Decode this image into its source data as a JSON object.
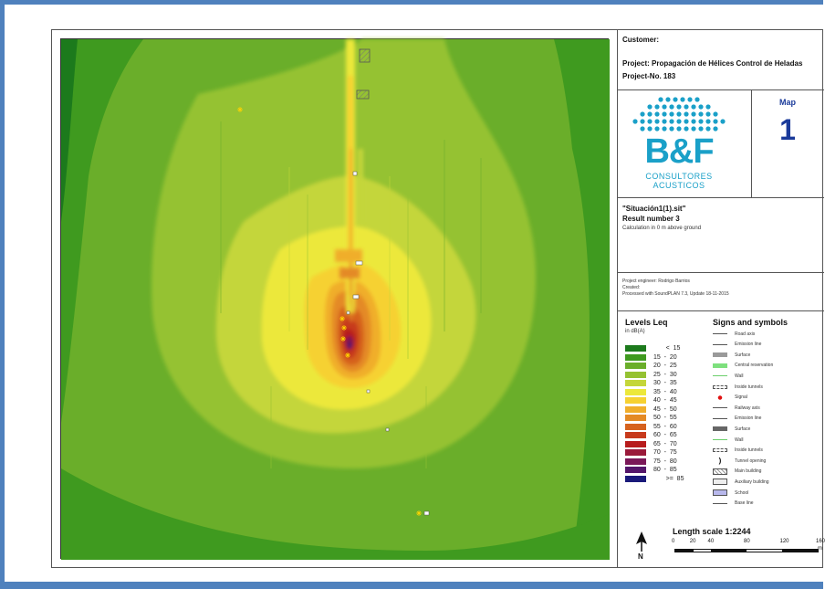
{
  "customer_label": "Customer:",
  "project_line": "Project: Propagación de Hélices Control de Heladas",
  "project_no": "Project-No. 183",
  "map_label": "Map",
  "map_number": "1",
  "logo": {
    "big_text": "B&F",
    "sub_line1": "CONSULTORES",
    "sub_line2": "ACUSTICOS",
    "color": "#1aa0c8"
  },
  "file_name": "\"Situación1(1).sit\"",
  "result_number": "Result number 3",
  "calculation_height": "Calculation in  0 m above ground",
  "engineer": "Project engineer: Rodrigo Barrios",
  "created": "Created:",
  "processed": "Processed with SoundPLAN 7.3, Update 18-11-2015",
  "levels_title": "Levels Leq",
  "levels_unit": "in dB(A)",
  "levels": [
    {
      "label": "       <  15",
      "color": "#1c7a1c"
    },
    {
      "label": "15  -  20",
      "color": "#3f9a1f"
    },
    {
      "label": "20  -  25",
      "color": "#6aae2a"
    },
    {
      "label": "25  -  30",
      "color": "#95c232"
    },
    {
      "label": "30  -  35",
      "color": "#c4d63a"
    },
    {
      "label": "35  -  40",
      "color": "#ece83a"
    },
    {
      "label": "40  -  45",
      "color": "#f6d131"
    },
    {
      "label": "45  -  50",
      "color": "#f0ae2b"
    },
    {
      "label": "50  -  55",
      "color": "#e48a25"
    },
    {
      "label": "55  -  60",
      "color": "#d6621e"
    },
    {
      "label": "60  -  65",
      "color": "#c73a1c"
    },
    {
      "label": "65  -  70",
      "color": "#b71c1c"
    },
    {
      "label": "70  -  75",
      "color": "#9a1a3a"
    },
    {
      "label": "75  -  80",
      "color": "#7a1858"
    },
    {
      "label": "80  -  85",
      "color": "#54166a"
    },
    {
      "label": "       >=  85",
      "color": "#1a1a7a"
    }
  ],
  "symbols_title": "Signs and symbols",
  "symbols": [
    {
      "label": "Road axis",
      "icon": "line-thin"
    },
    {
      "label": "Emission line",
      "icon": "line-thin"
    },
    {
      "label": "Surface",
      "icon": "box-gray"
    },
    {
      "label": "Central reservation",
      "icon": "box-green"
    },
    {
      "label": "Wall",
      "icon": "line-green"
    },
    {
      "label": "Inside tunnels",
      "icon": "dashed-box"
    },
    {
      "label": "Signal",
      "icon": "red-dot"
    },
    {
      "label": "Railway axis",
      "icon": "line-thin"
    },
    {
      "label": "Emission line",
      "icon": "line-thin"
    },
    {
      "label": "Surface",
      "icon": "box-dark"
    },
    {
      "label": "Wall",
      "icon": "line-green"
    },
    {
      "label": "Inside tunnels",
      "icon": "dashed-box"
    },
    {
      "label": "Tunnel opening",
      "icon": "bracket"
    },
    {
      "label": "Main building",
      "icon": "hatched-box"
    },
    {
      "label": "Auxiliary building",
      "icon": "outline-box"
    },
    {
      "label": "School",
      "icon": "blue-box"
    },
    {
      "label": "Base line",
      "icon": "line-thin"
    }
  ],
  "scale_label": "Length scale 1:2244",
  "scale_ticks": [
    "0",
    "20",
    "40",
    "80",
    "120",
    "160"
  ],
  "scale_unit": "m",
  "north_label": "N"
}
